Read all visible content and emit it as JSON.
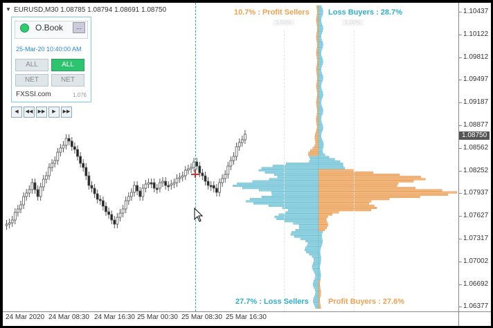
{
  "chart": {
    "symbol_title": "EURUSD,M30  1.08785 1.08794 1.08691 1.08750",
    "current_price": "1.08750",
    "price_labels": [
      "1.10437",
      "1.10122",
      "1.09812",
      "1.09497",
      "1.09187",
      "1.08877",
      "1.08562",
      "1.08252",
      "1.07937",
      "1.07627",
      "1.07317",
      "1.07002",
      "1.06692",
      "1.06377"
    ],
    "time_labels": [
      "24 Mar 2020",
      "24 Mar 08:30",
      "24 Mar 16:30",
      "25 Mar 00:30",
      "25 Mar 08:30",
      "25 Mar 16:30"
    ],
    "colors": {
      "bull": "#ffffff",
      "bear": "#000000",
      "candle": "#555555",
      "buyers": "#f5b678",
      "sellers": "#8fd2e2"
    }
  },
  "orderbook_panel": {
    "title": "O.Book",
    "minimize_label": "...",
    "date": "25-Mar-20 10:40:00 AM",
    "buttons": [
      {
        "label": "ALL",
        "active": false
      },
      {
        "label": "ALL",
        "active": true
      },
      {
        "label": "NET",
        "active": false
      },
      {
        "label": "NET",
        "active": false
      }
    ],
    "brand": "FXSSI.com",
    "version": "1.076",
    "nav_icons": [
      "skip-back-icon",
      "rewind-icon",
      "fast-forward-icon",
      "play-icon",
      "skip-forward-icon"
    ],
    "nav_glyphs": [
      "◀",
      "◀◀",
      "▶▶",
      "▶",
      "▶▶"
    ]
  },
  "orderbook": {
    "profit_sellers": "10.7% : Profit Sellers",
    "loss_buyers": "Loss Buyers : 28.7%",
    "loss_sellers": "27.7% : Loss Sellers",
    "profit_buyers": "Profit Buyers : 27.6%",
    "scale_left": "1.00%",
    "scale_right": "1.00%"
  }
}
